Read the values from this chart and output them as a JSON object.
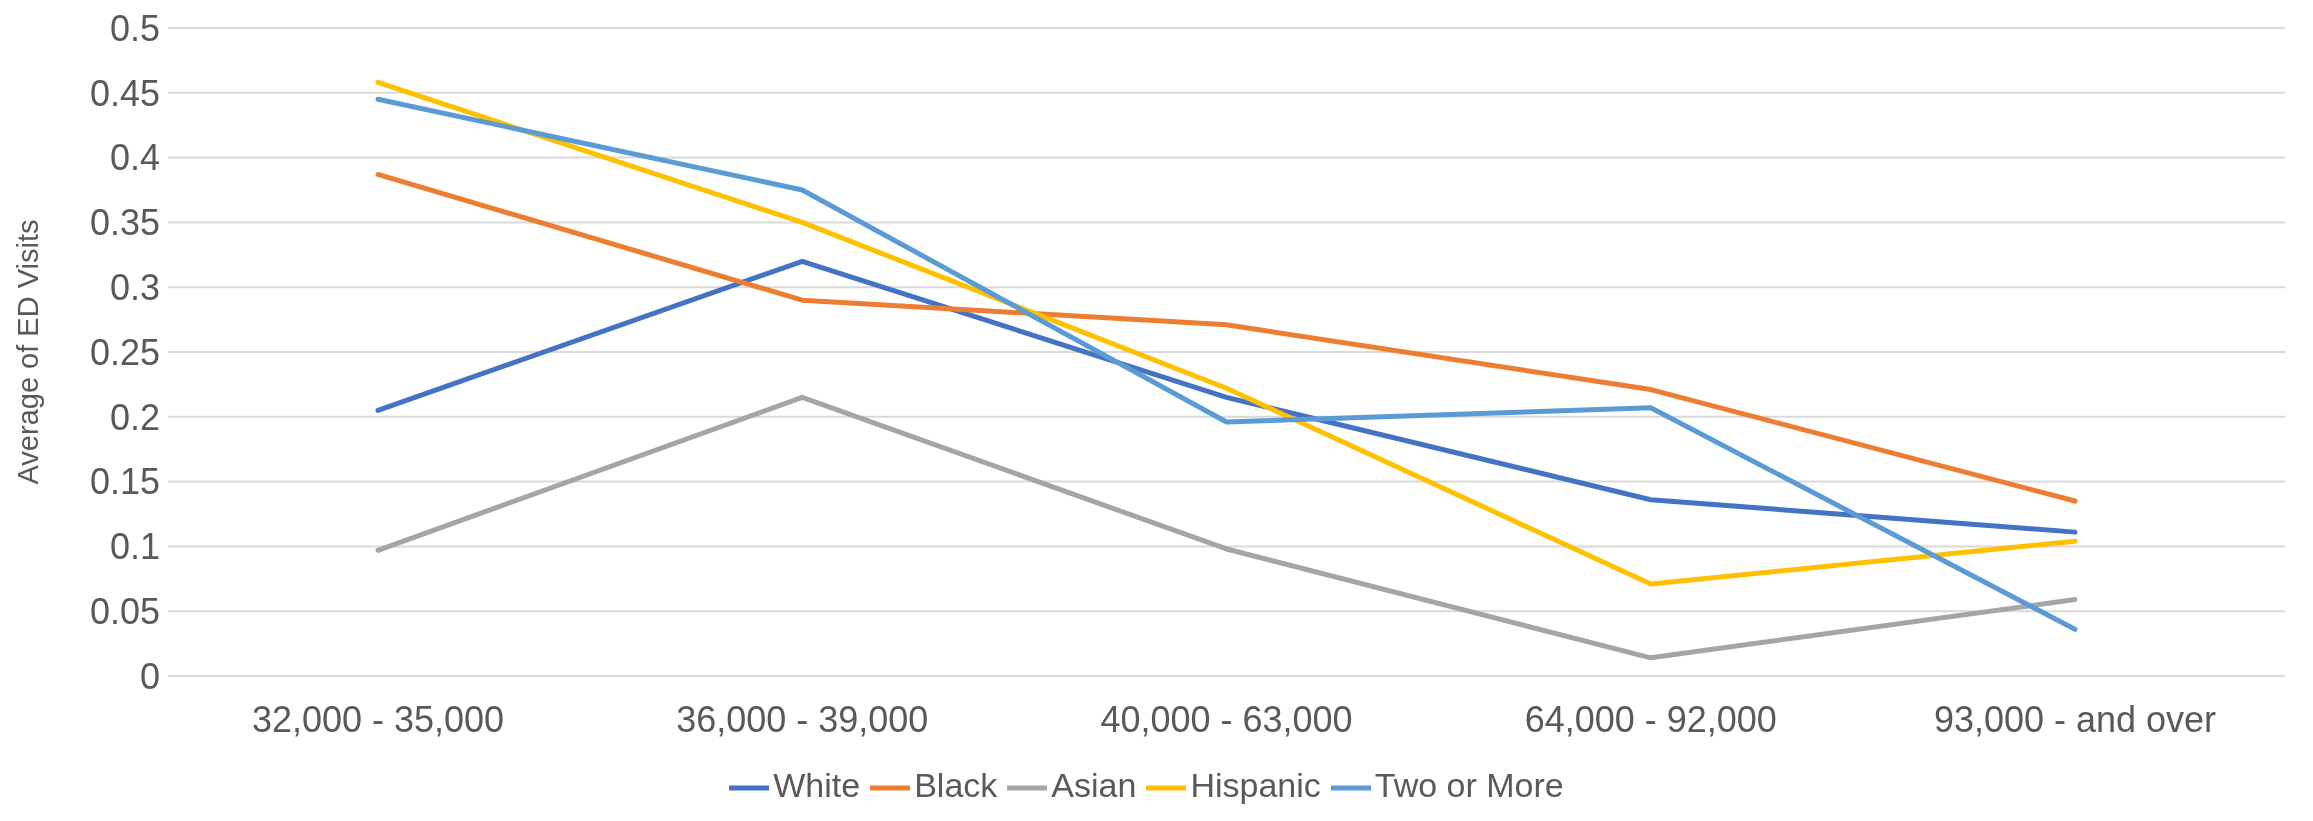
{
  "chart_data": {
    "type": "line",
    "ylabel": "Average of ED Visits",
    "categories": [
      "32,000 - 35,000",
      "36,000 - 39,000",
      "40,000 - 63,000",
      "64,000 - 92,000",
      "93,000 - and over"
    ],
    "series": [
      {
        "name": "White",
        "color": "#4472c4",
        "values": [
          0.205,
          0.32,
          0.215,
          0.136,
          0.111
        ]
      },
      {
        "name": "Black",
        "color": "#ed7d31",
        "values": [
          0.387,
          0.29,
          0.271,
          0.221,
          0.135
        ]
      },
      {
        "name": "Asian",
        "color": "#a5a5a5",
        "values": [
          0.097,
          0.215,
          0.098,
          0.014,
          0.059
        ]
      },
      {
        "name": "Hispanic",
        "color": "#ffc000",
        "values": [
          0.458,
          0.35,
          0.222,
          0.071,
          0.104
        ]
      },
      {
        "name": "Two or More",
        "color": "#5b9bd5",
        "values": [
          0.445,
          0.375,
          0.196,
          0.207,
          0.036
        ]
      }
    ],
    "ylim": [
      0,
      0.5
    ],
    "yticks": [
      0,
      0.05,
      0.1,
      0.15,
      0.2,
      0.25,
      0.3,
      0.35,
      0.4,
      0.45,
      0.5
    ],
    "grid": "y",
    "legend": "bottom",
    "marker": "none",
    "line_style": "solid"
  }
}
